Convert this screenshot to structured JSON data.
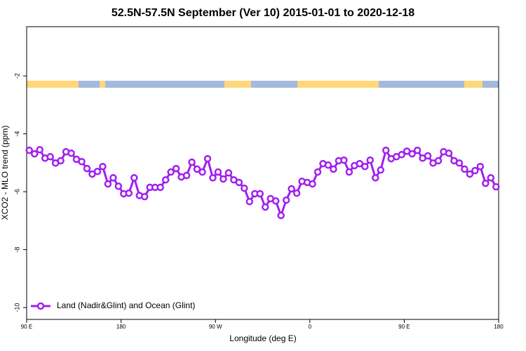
{
  "chart_data": {
    "type": "line",
    "title": "52.5N-57.5N September (Ver 10)   2015-01-01 to 2020-12-18",
    "x_label": "Longitude (deg E)",
    "y_label": "XCO2 - MLO trend (ppm)",
    "x": [
      92.5,
      97.5,
      102.5,
      107.5,
      112.5,
      117.5,
      122.5,
      127.5,
      132.5,
      137.5,
      142.5,
      147.5,
      152.5,
      157.5,
      162.5,
      167.5,
      172.5,
      177.5,
      182.5,
      187.5,
      192.5,
      197.5,
      202.5,
      207.5,
      212.5,
      217.5,
      222.5,
      227.5,
      232.5,
      237.5,
      242.5,
      247.5,
      252.5,
      257.5,
      262.5,
      267.5,
      272.5,
      277.5,
      282.5,
      287.5,
      292.5,
      297.5,
      302.5,
      307.5,
      312.5,
      317.5,
      322.5,
      327.5,
      332.5,
      337.5,
      342.5,
      347.5,
      352.5,
      357.5,
      362.5,
      367.5,
      372.5,
      377.5,
      382.5,
      387.5,
      392.5,
      397.5,
      402.5,
      407.5,
      412.5,
      417.5,
      422.5,
      427.5,
      432.5,
      437.5,
      442.5,
      447.5,
      452.5,
      457.5,
      462.5,
      467.5,
      472.5,
      477.5,
      482.5,
      487.5,
      492.5,
      497.5,
      502.5,
      507.5,
      512.5,
      517.5,
      522.5,
      527.5,
      532.5,
      537.5
    ],
    "series": [
      {
        "name": "Land (Nadir&Glint) and Ocean (Glint)",
        "color": "#a020f0",
        "values": [
          -4.57,
          -4.69,
          -4.55,
          -4.84,
          -4.79,
          -5.01,
          -4.93,
          -4.62,
          -4.67,
          -4.88,
          -4.96,
          -5.2,
          -5.39,
          -5.3,
          -5.13,
          -5.73,
          -5.52,
          -5.81,
          -6.07,
          -6.05,
          -5.52,
          -6.13,
          -6.17,
          -5.85,
          -5.85,
          -5.85,
          -5.59,
          -5.32,
          -5.2,
          -5.49,
          -5.44,
          -4.98,
          -5.22,
          -5.32,
          -4.86,
          -5.52,
          -5.32,
          -5.56,
          -5.35,
          -5.59,
          -5.68,
          -5.88,
          -6.34,
          -6.07,
          -6.07,
          -6.53,
          -6.24,
          -6.32,
          -6.82,
          -6.29,
          -5.9,
          -6.05,
          -5.64,
          -5.68,
          -5.73,
          -5.32,
          -5.03,
          -5.08,
          -5.22,
          -4.93,
          -4.91,
          -5.32,
          -5.1,
          -5.03,
          -5.13,
          -4.91,
          -5.52,
          -5.25,
          -4.57,
          -4.86,
          -4.79,
          -4.72,
          -4.6,
          -4.69,
          -4.57,
          -4.84,
          -4.76,
          -5.01,
          -4.93,
          -4.62,
          -4.67,
          -4.93,
          -5.01,
          -5.22,
          -5.39,
          -5.27,
          -5.13,
          -5.71,
          -5.52,
          -5.83
        ]
      }
    ],
    "xlim": [
      90,
      540
    ],
    "xticks": [
      {
        "value": 90,
        "label": "90 E"
      },
      180,
      {
        "value": 270,
        "label": "90 W"
      },
      {
        "value": 360,
        "label": "0"
      },
      {
        "value": 450,
        "label": "90 E"
      },
      {
        "value": 540,
        "label": "180"
      }
    ],
    "ylim": [
      -10.41,
      -0.3
    ],
    "yticks": [
      -2,
      -4,
      -6,
      -8,
      -10
    ],
    "legend": "bottom-left"
  }
}
